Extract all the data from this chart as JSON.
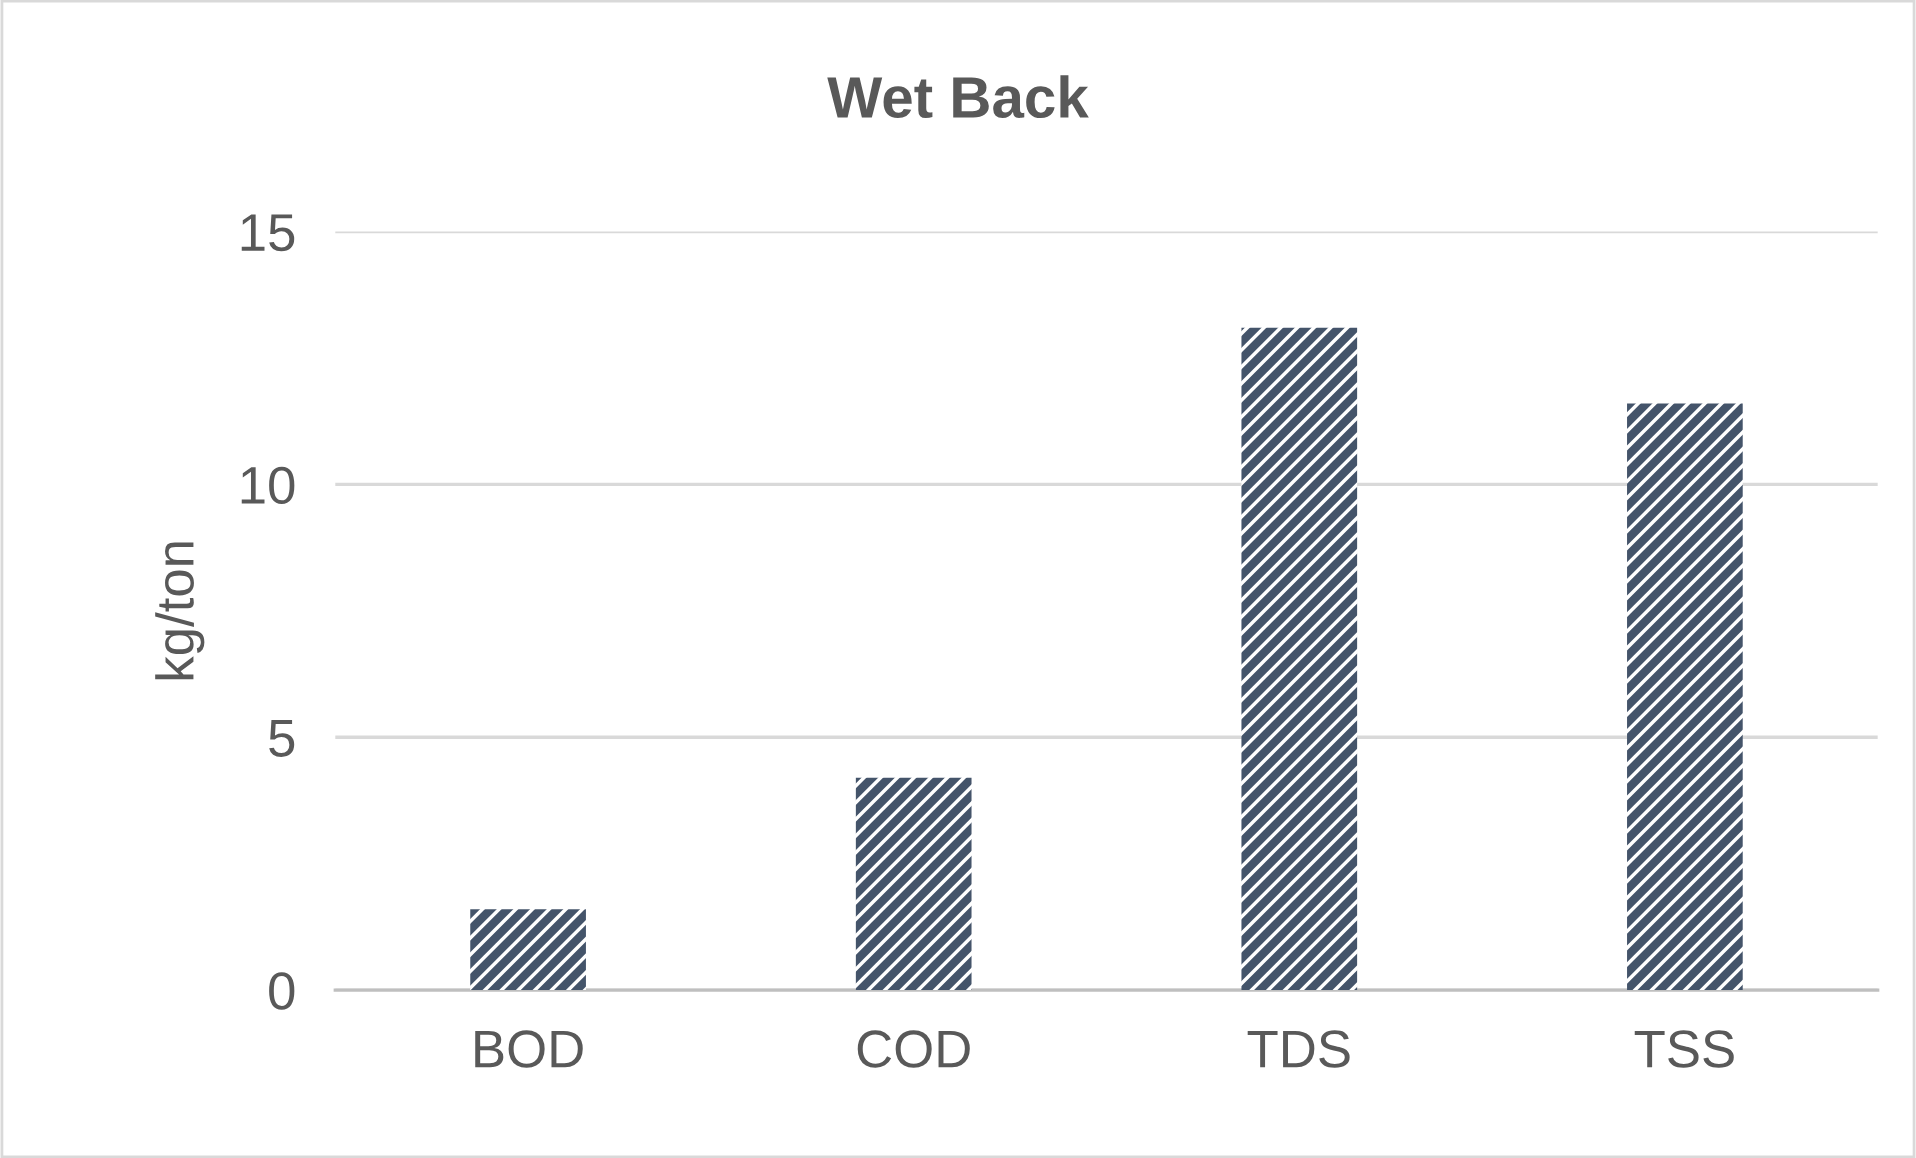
{
  "chart_data": {
    "type": "bar",
    "title": "Wet Back",
    "ylabel": "kg/ton",
    "categories": [
      "BOD",
      "COD",
      "TDS",
      "TSS"
    ],
    "values": [
      1.6,
      4.2,
      13.1,
      11.6
    ],
    "color": "#44546a",
    "ylim": [
      0,
      15
    ],
    "yticks": [
      0,
      5,
      10,
      15
    ],
    "grid": "y",
    "legend": false
  }
}
